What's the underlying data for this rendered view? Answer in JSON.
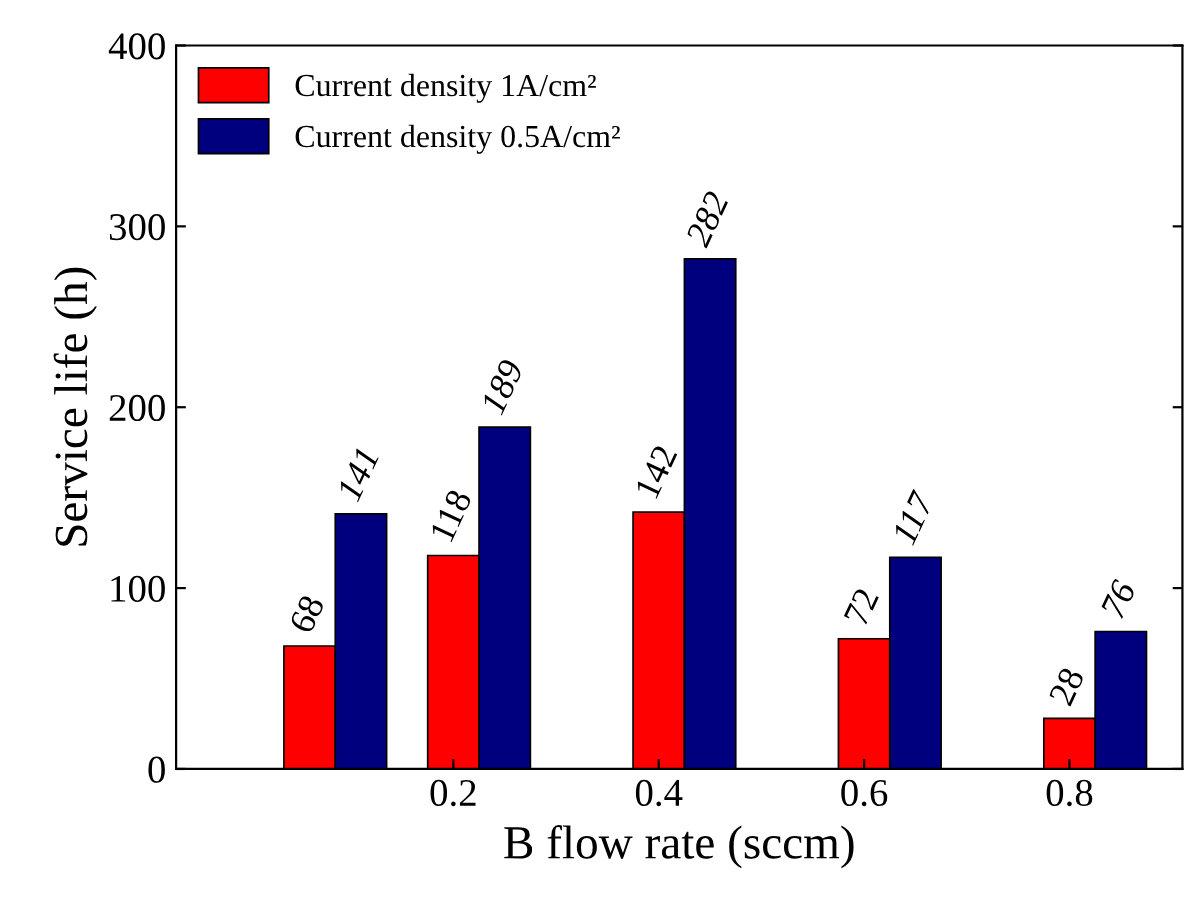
{
  "chart_data": {
    "type": "bar",
    "xlabel": "B flow rate (sccm)",
    "ylabel": "Service life (h)",
    "x": [
      0.06,
      0.2,
      0.4,
      0.6,
      0.8
    ],
    "series": [
      {
        "name": "Current density 1A/cm²",
        "color": "#ff0000",
        "values": [
          68,
          118,
          142,
          72,
          28
        ]
      },
      {
        "name": "Current density 0.5A/cm²",
        "color": "#00007f",
        "values": [
          141,
          189,
          282,
          117,
          76
        ]
      }
    ],
    "xlim": [
      -0.07,
      0.91
    ],
    "xticks": [
      0.2,
      0.4,
      0.6,
      0.8
    ],
    "ylim": [
      0,
      400
    ],
    "yticks": [
      0,
      100,
      200,
      300,
      400
    ],
    "data_labels": true,
    "legend": "top left",
    "grid": false
  }
}
